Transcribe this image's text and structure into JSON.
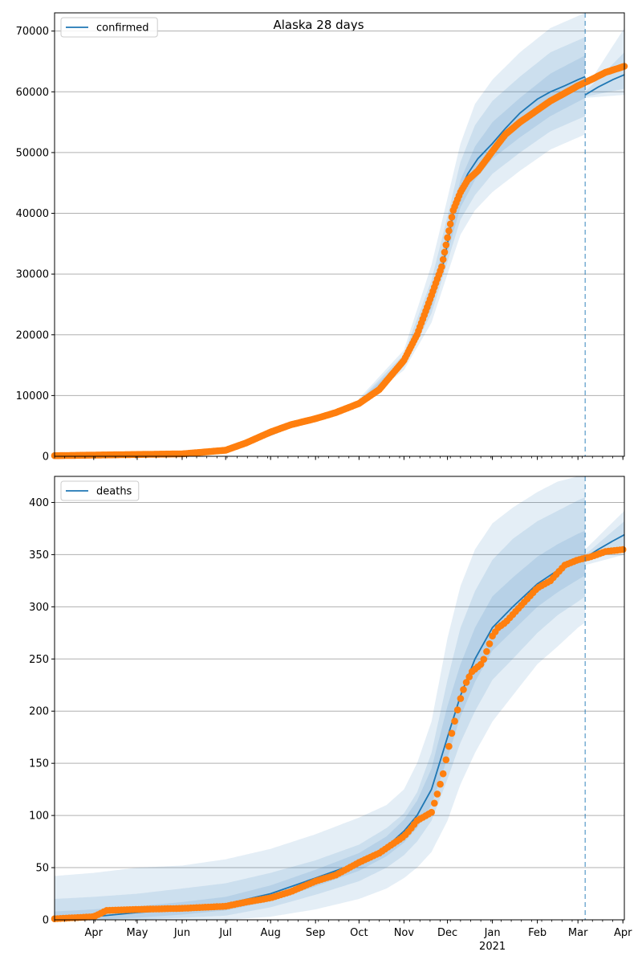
{
  "figure": {
    "title": "Alaska 28 days"
  },
  "colors": {
    "model": "#1f77b4",
    "observed": "#ff7f0e",
    "band": "#1f77b4",
    "grid": "#b0b0b0",
    "forecast_line": "#1f77b4"
  },
  "chart_data": [
    {
      "type": "line",
      "legend": {
        "label": "confirmed",
        "placement": "top-left"
      },
      "grid": "horizontal",
      "x_range": [
        "2020-03-05",
        "2021-04-02"
      ],
      "ylim": [
        0,
        73000
      ],
      "y_ticks": [
        0,
        10000,
        20000,
        30000,
        40000,
        50000,
        60000,
        70000
      ],
      "x_month_ticks": [
        {
          "date": "2020-04-01",
          "label": "Apr"
        },
        {
          "date": "2020-05-01",
          "label": "May"
        },
        {
          "date": "2020-06-01",
          "label": "Jun"
        },
        {
          "date": "2020-07-01",
          "label": "Jul"
        },
        {
          "date": "2020-08-01",
          "label": "Aug"
        },
        {
          "date": "2020-09-01",
          "label": "Sep"
        },
        {
          "date": "2020-10-01",
          "label": "Oct"
        },
        {
          "date": "2020-11-01",
          "label": "Nov"
        },
        {
          "date": "2020-12-01",
          "label": "Dec"
        },
        {
          "date": "2021-01-01",
          "label": "Jan",
          "sublabel": "2021"
        },
        {
          "date": "2021-02-01",
          "label": "Feb"
        },
        {
          "date": "2021-03-01",
          "label": "Mar"
        },
        {
          "date": "2021-04-01",
          "label": "Apr"
        }
      ],
      "forecast_start": "2021-03-06",
      "model": {
        "name": "confirmed",
        "dates": [
          "2020-03-05",
          "2020-04-01",
          "2020-05-01",
          "2020-06-01",
          "2020-07-01",
          "2020-07-15",
          "2020-08-01",
          "2020-08-15",
          "2020-09-01",
          "2020-09-15",
          "2020-10-01",
          "2020-10-15",
          "2020-11-01",
          "2020-11-10",
          "2020-11-20",
          "2020-11-27",
          "2020-12-01",
          "2020-12-05",
          "2020-12-10",
          "2020-12-15",
          "2020-12-22",
          "2021-01-01",
          "2021-01-10",
          "2021-01-20",
          "2021-02-01",
          "2021-02-10",
          "2021-02-20",
          "2021-03-01",
          "2021-03-06"
        ],
        "values": [
          0,
          200,
          300,
          400,
          1000,
          2000,
          3500,
          4800,
          6200,
          7300,
          8800,
          11000,
          15500,
          19500,
          25500,
          30500,
          35000,
          40000,
          44000,
          46500,
          49000,
          51500,
          54000,
          56500,
          58800,
          60000,
          61000,
          62000,
          62500
        ],
        "forecast_dates": [
          "2021-03-06",
          "2021-03-15",
          "2021-03-25",
          "2021-04-02"
        ],
        "forecast_values": [
          59500,
          60800,
          62000,
          62800
        ]
      },
      "bands": [
        {
          "dates": [
            "2020-10-01",
            "2020-11-01",
            "2020-11-20",
            "2020-12-01",
            "2020-12-10",
            "2020-12-20",
            "2021-01-01",
            "2021-01-20",
            "2021-02-10",
            "2021-03-06"
          ],
          "lower": [
            8300,
            14200,
            22000,
            30000,
            36500,
            40500,
            43500,
            47000,
            50500,
            53000
          ],
          "upper": [
            9500,
            17500,
            31500,
            42500,
            51500,
            58000,
            62000,
            66500,
            70500,
            73000
          ]
        },
        {
          "dates": [
            "2020-10-01",
            "2020-11-01",
            "2020-11-20",
            "2020-12-01",
            "2020-12-10",
            "2020-12-20",
            "2021-01-01",
            "2021-01-20",
            "2021-02-10",
            "2021-03-06"
          ],
          "lower": [
            8500,
            14800,
            23500,
            32000,
            39000,
            43000,
            46500,
            50000,
            53500,
            56000
          ],
          "upper": [
            9200,
            16800,
            29000,
            39500,
            48500,
            54500,
            58500,
            62500,
            66500,
            69000
          ]
        },
        {
          "dates": [
            "2020-10-01",
            "2020-11-01",
            "2020-11-20",
            "2020-12-01",
            "2020-12-10",
            "2020-12-20",
            "2021-01-01",
            "2021-01-20",
            "2021-02-10",
            "2021-03-06"
          ],
          "lower": [
            8700,
            15200,
            24500,
            33500,
            41000,
            45500,
            49000,
            52500,
            56000,
            59000
          ],
          "upper": [
            9000,
            16200,
            27000,
            37000,
            45500,
            51000,
            55000,
            59000,
            63000,
            66000
          ]
        }
      ],
      "forecast_bands": [
        {
          "dates": [
            "2021-03-06",
            "2021-04-02"
          ],
          "lower": [
            59000,
            59500
          ],
          "upper": [
            60500,
            70500
          ]
        },
        {
          "dates": [
            "2021-03-06",
            "2021-04-02"
          ],
          "lower": [
            59200,
            60500
          ],
          "upper": [
            60000,
            66500
          ]
        }
      ],
      "observed": {
        "dates": [
          "2020-03-05",
          "2020-04-01",
          "2020-05-01",
          "2020-06-01",
          "2020-07-01",
          "2020-07-15",
          "2020-08-01",
          "2020-08-15",
          "2020-09-01",
          "2020-09-15",
          "2020-10-01",
          "2020-10-15",
          "2020-11-01",
          "2020-11-10",
          "2020-11-20",
          "2020-11-27",
          "2020-12-01",
          "2020-12-05",
          "2020-12-10",
          "2020-12-15",
          "2020-12-22",
          "2021-01-01",
          "2021-01-10",
          "2021-01-20",
          "2021-02-01",
          "2021-02-10",
          "2021-02-20",
          "2021-03-01",
          "2021-03-10",
          "2021-03-20",
          "2021-04-02"
        ],
        "values": [
          100,
          200,
          300,
          400,
          1000,
          2200,
          4000,
          5200,
          6200,
          7200,
          8700,
          11000,
          15800,
          20000,
          26500,
          31200,
          36000,
          40500,
          43500,
          45500,
          47000,
          50200,
          53000,
          55000,
          57000,
          58500,
          59800,
          61000,
          62000,
          63200,
          64200
        ]
      }
    },
    {
      "type": "line",
      "legend": {
        "label": "deaths",
        "placement": "top-left"
      },
      "grid": "horizontal",
      "x_range": [
        "2020-03-05",
        "2021-04-02"
      ],
      "ylim": [
        0,
        425
      ],
      "y_ticks": [
        0,
        50,
        100,
        150,
        200,
        250,
        300,
        350,
        400
      ],
      "x_month_ticks": [
        {
          "date": "2020-04-01",
          "label": "Apr"
        },
        {
          "date": "2020-05-01",
          "label": "May"
        },
        {
          "date": "2020-06-01",
          "label": "Jun"
        },
        {
          "date": "2020-07-01",
          "label": "Jul"
        },
        {
          "date": "2020-08-01",
          "label": "Aug"
        },
        {
          "date": "2020-09-01",
          "label": "Sep"
        },
        {
          "date": "2020-10-01",
          "label": "Oct"
        },
        {
          "date": "2020-11-01",
          "label": "Nov"
        },
        {
          "date": "2020-12-01",
          "label": "Dec"
        },
        {
          "date": "2021-01-01",
          "label": "Jan",
          "sublabel": "2021"
        },
        {
          "date": "2021-02-01",
          "label": "Feb"
        },
        {
          "date": "2021-03-01",
          "label": "Mar"
        },
        {
          "date": "2021-04-01",
          "label": "Apr"
        }
      ],
      "forecast_start": "2021-03-06",
      "model": {
        "name": "deaths",
        "dates": [
          "2020-03-05",
          "2020-04-01",
          "2020-05-01",
          "2020-06-01",
          "2020-07-01",
          "2020-08-01",
          "2020-09-01",
          "2020-10-01",
          "2020-10-20",
          "2020-11-01",
          "2020-11-10",
          "2020-11-20",
          "2020-12-01",
          "2020-12-10",
          "2020-12-20",
          "2021-01-01",
          "2021-01-15",
          "2021-02-01",
          "2021-02-15",
          "2021-03-01",
          "2021-03-06"
        ],
        "values": [
          0,
          3,
          7,
          10,
          15,
          25,
          40,
          55,
          70,
          85,
          100,
          125,
          175,
          215,
          250,
          280,
          300,
          322,
          335,
          343,
          345
        ],
        "forecast_dates": [
          "2021-03-06",
          "2021-03-15",
          "2021-03-25",
          "2021-04-02"
        ],
        "forecast_values": [
          347,
          355,
          363,
          369
        ]
      },
      "bands": [
        {
          "dates": [
            "2020-03-05",
            "2020-04-01",
            "2020-05-01",
            "2020-06-01",
            "2020-07-01",
            "2020-08-01",
            "2020-09-01",
            "2020-10-01",
            "2020-10-20",
            "2020-11-01",
            "2020-11-10",
            "2020-11-20",
            "2020-12-01",
            "2020-12-10",
            "2020-12-20",
            "2021-01-01",
            "2021-01-15",
            "2021-02-01",
            "2021-02-15",
            "2021-03-01",
            "2021-03-06"
          ],
          "lower": [
            0,
            0,
            0,
            0,
            0,
            3,
            10,
            20,
            30,
            40,
            50,
            65,
            95,
            130,
            160,
            190,
            215,
            245,
            262,
            280,
            285
          ],
          "upper": [
            42,
            45,
            50,
            52,
            58,
            68,
            82,
            98,
            110,
            125,
            150,
            190,
            270,
            320,
            355,
            380,
            395,
            410,
            420,
            425,
            425
          ]
        },
        {
          "dates": [
            "2020-03-05",
            "2020-04-01",
            "2020-05-01",
            "2020-06-01",
            "2020-07-01",
            "2020-08-01",
            "2020-09-01",
            "2020-10-01",
            "2020-10-20",
            "2020-11-01",
            "2020-11-10",
            "2020-11-20",
            "2020-12-01",
            "2020-12-10",
            "2020-12-20",
            "2021-01-01",
            "2021-01-15",
            "2021-02-01",
            "2021-02-15",
            "2021-03-01",
            "2021-03-06"
          ],
          "lower": [
            0,
            0,
            0,
            2,
            4,
            12,
            24,
            37,
            50,
            62,
            75,
            95,
            135,
            170,
            200,
            230,
            250,
            275,
            292,
            305,
            310
          ],
          "upper": [
            20,
            22,
            25,
            30,
            35,
            45,
            57,
            72,
            88,
            102,
            122,
            160,
            230,
            280,
            315,
            345,
            365,
            382,
            392,
            402,
            405
          ]
        },
        {
          "dates": [
            "2020-03-05",
            "2020-04-01",
            "2020-05-01",
            "2020-06-01",
            "2020-07-01",
            "2020-08-01",
            "2020-09-01",
            "2020-10-01",
            "2020-10-20",
            "2020-11-01",
            "2020-11-10",
            "2020-11-20",
            "2020-12-01",
            "2020-12-10",
            "2020-12-20",
            "2021-01-01",
            "2021-01-15",
            "2021-02-01",
            "2021-02-15",
            "2021-03-01",
            "2021-03-06"
          ],
          "lower": [
            0,
            0,
            2,
            5,
            9,
            18,
            32,
            47,
            61,
            74,
            88,
            110,
            155,
            195,
            228,
            258,
            277,
            300,
            314,
            326,
            330
          ],
          "upper": [
            8,
            10,
            13,
            17,
            22,
            33,
            48,
            64,
            80,
            96,
            114,
            145,
            205,
            245,
            280,
            310,
            328,
            348,
            360,
            370,
            373
          ]
        }
      ],
      "forecast_bands": [
        {
          "dates": [
            "2021-03-06",
            "2021-04-02"
          ],
          "lower": [
            340,
            350
          ],
          "upper": [
            355,
            392
          ]
        },
        {
          "dates": [
            "2021-03-06",
            "2021-04-02"
          ],
          "lower": [
            343,
            355
          ],
          "upper": [
            350,
            382
          ]
        }
      ],
      "observed": {
        "dates": [
          "2020-03-05",
          "2020-04-01",
          "2020-04-10",
          "2020-05-01",
          "2020-06-01",
          "2020-07-01",
          "2020-07-15",
          "2020-08-01",
          "2020-08-15",
          "2020-09-01",
          "2020-09-15",
          "2020-10-01",
          "2020-10-15",
          "2020-11-01",
          "2020-11-05",
          "2020-11-10",
          "2020-11-20",
          "2020-11-25",
          "2020-11-28",
          "2020-12-01",
          "2020-12-05",
          "2020-12-10",
          "2020-12-13",
          "2020-12-18",
          "2020-12-25",
          "2021-01-01",
          "2021-01-05",
          "2021-01-10",
          "2021-01-20",
          "2021-02-01",
          "2021-02-10",
          "2021-02-20",
          "2021-03-01",
          "2021-03-10",
          "2021-03-20",
          "2021-04-02"
        ],
        "values": [
          1,
          3,
          9,
          10,
          11,
          13,
          17,
          21,
          27,
          37,
          43,
          55,
          64,
          80,
          86,
          95,
          103,
          125,
          140,
          160,
          185,
          212,
          225,
          238,
          246,
          272,
          280,
          285,
          300,
          318,
          325,
          340,
          345,
          348,
          353,
          355
        ]
      }
    }
  ]
}
